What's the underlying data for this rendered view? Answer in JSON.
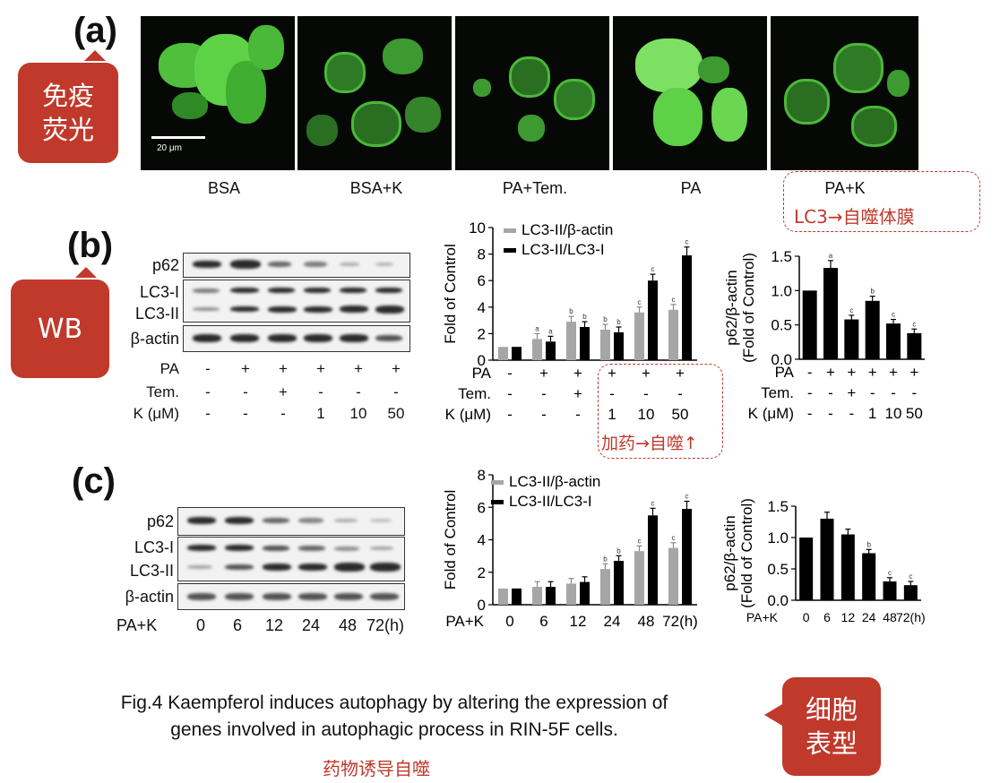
{
  "figure": {
    "caption_line1": "Fig.4 Kaempferol induces autophagy by altering the expression of",
    "caption_line2": "genes involved in autophagic process in RIN-5F cells.",
    "caption_cn": "药物诱导自噬"
  },
  "callouts": {
    "immuno": "免疫荧光",
    "wb": "WB",
    "phenotype": "细胞表型"
  },
  "panel_a": {
    "letter": "(a)",
    "scale_bar": "20 μm",
    "labels": [
      "BSA",
      "BSA+K",
      "PA+Tem.",
      "PA",
      "PA+K"
    ],
    "note": "LC3→自噬体膜"
  },
  "panel_b": {
    "letter": "(b)",
    "blot_rows": [
      "p62",
      "LC3-I",
      "LC3-II",
      "β-actin"
    ],
    "cond_labels": [
      "PA",
      "Tem.",
      "K (μM)"
    ],
    "cond_values": {
      "PA": [
        "-",
        "+",
        "+",
        "+",
        "+",
        "+"
      ],
      "Tem": [
        "-",
        "-",
        "+",
        "-",
        "-",
        "-"
      ],
      "K": [
        "-",
        "-",
        "-",
        "1",
        "10",
        "50"
      ]
    },
    "note": "加药→自噬↑"
  },
  "panel_c": {
    "letter": "(c)",
    "blot_rows": [
      "p62",
      "LC3-I",
      "LC3-II",
      "β-actin"
    ],
    "cond_label": "PA+K",
    "times": [
      "0",
      "6",
      "12",
      "24",
      "48",
      "72(h)"
    ]
  },
  "chart_data": [
    {
      "id": "b-lc3",
      "type": "bar",
      "ylabel": "Fold of Control",
      "ylim": [
        0,
        10
      ],
      "yticks": [
        "0",
        "2",
        "4",
        "6",
        "8",
        "10"
      ],
      "legend": [
        "LC3-II/β-actin",
        "LC3-II/LC3-I"
      ],
      "series": [
        {
          "name": "LC3-II/β-actin",
          "color": "#a6a6a6",
          "values": [
            1,
            1.6,
            2.9,
            2.3,
            3.6,
            3.8
          ]
        },
        {
          "name": "LC3-II/LC3-I",
          "color": "#000000",
          "values": [
            1,
            1.4,
            2.5,
            2.1,
            6.0,
            7.9
          ]
        }
      ],
      "sig": [
        [
          "",
          "a",
          "b",
          "b",
          "c",
          "c"
        ],
        [
          "",
          "a",
          "b",
          "b",
          "c",
          "c"
        ]
      ],
      "cond_rows": [
        {
          "label": "PA",
          "values": [
            "-",
            "+",
            "+",
            "+",
            "+",
            "+"
          ]
        },
        {
          "label": "Tem.",
          "values": [
            "-",
            "-",
            "+",
            "-",
            "-",
            "-"
          ]
        },
        {
          "label": "K (μM)",
          "values": [
            "-",
            "-",
            "-",
            "1",
            "10",
            "50"
          ]
        }
      ]
    },
    {
      "id": "b-p62",
      "type": "bar",
      "ylabel": "p62/β-actin (Fold of Control)",
      "ylim": [
        0,
        1.5
      ],
      "yticks": [
        "0.0",
        "0.5",
        "1.0",
        "1.5"
      ],
      "series": [
        {
          "name": "p62/β-actin",
          "color": "#000000",
          "values": [
            1.0,
            1.33,
            0.58,
            0.85,
            0.52,
            0.38
          ]
        }
      ],
      "sig": [
        [
          "",
          "a",
          "c",
          "b",
          "c",
          "c"
        ]
      ],
      "cond_rows": [
        {
          "label": "PA",
          "values": [
            "-",
            "+",
            "+",
            "+",
            "+",
            "+"
          ]
        },
        {
          "label": "Tem.",
          "values": [
            "-",
            "-",
            "+",
            "-",
            "-",
            "-"
          ]
        },
        {
          "label": "K (μM)",
          "values": [
            "-",
            "-",
            "-",
            "1",
            "10",
            "50"
          ]
        }
      ]
    },
    {
      "id": "c-lc3",
      "type": "bar",
      "ylabel": "Fold of Control",
      "ylim": [
        0,
        8
      ],
      "yticks": [
        "0",
        "2",
        "4",
        "6",
        "8"
      ],
      "legend": [
        "LC3-II/β-actin",
        "LC3-II/LC3-I"
      ],
      "series": [
        {
          "name": "LC3-II/β-actin",
          "color": "#a6a6a6",
          "values": [
            1.0,
            1.1,
            1.3,
            2.2,
            3.3,
            3.5
          ]
        },
        {
          "name": "LC3-II/LC3-I",
          "color": "#000000",
          "values": [
            1.0,
            1.1,
            1.4,
            2.7,
            5.5,
            5.9
          ]
        }
      ],
      "sig": [
        [
          "",
          "",
          "",
          "b",
          "c",
          "c"
        ],
        [
          "",
          "",
          "",
          "b",
          "c",
          "c"
        ]
      ],
      "xlabel_prefix": "PA+K",
      "categories": [
        "0",
        "6",
        "12",
        "24",
        "48",
        "72(h)"
      ]
    },
    {
      "id": "c-p62",
      "type": "bar",
      "ylabel": "p62/β-actin (Fold of Control)",
      "ylim": [
        0,
        1.5
      ],
      "yticks": [
        "0.0",
        "0.5",
        "1.0",
        "1.5"
      ],
      "series": [
        {
          "name": "p62/β-actin",
          "color": "#000000",
          "values": [
            1.0,
            1.3,
            1.05,
            0.75,
            0.3,
            0.24
          ]
        }
      ],
      "sig": [
        [
          "",
          "",
          "",
          "b",
          "c",
          "c"
        ]
      ],
      "xlabel_prefix": "PA+K",
      "categories": [
        "0",
        "6",
        "12",
        "24",
        "48",
        "72(h)"
      ]
    }
  ]
}
